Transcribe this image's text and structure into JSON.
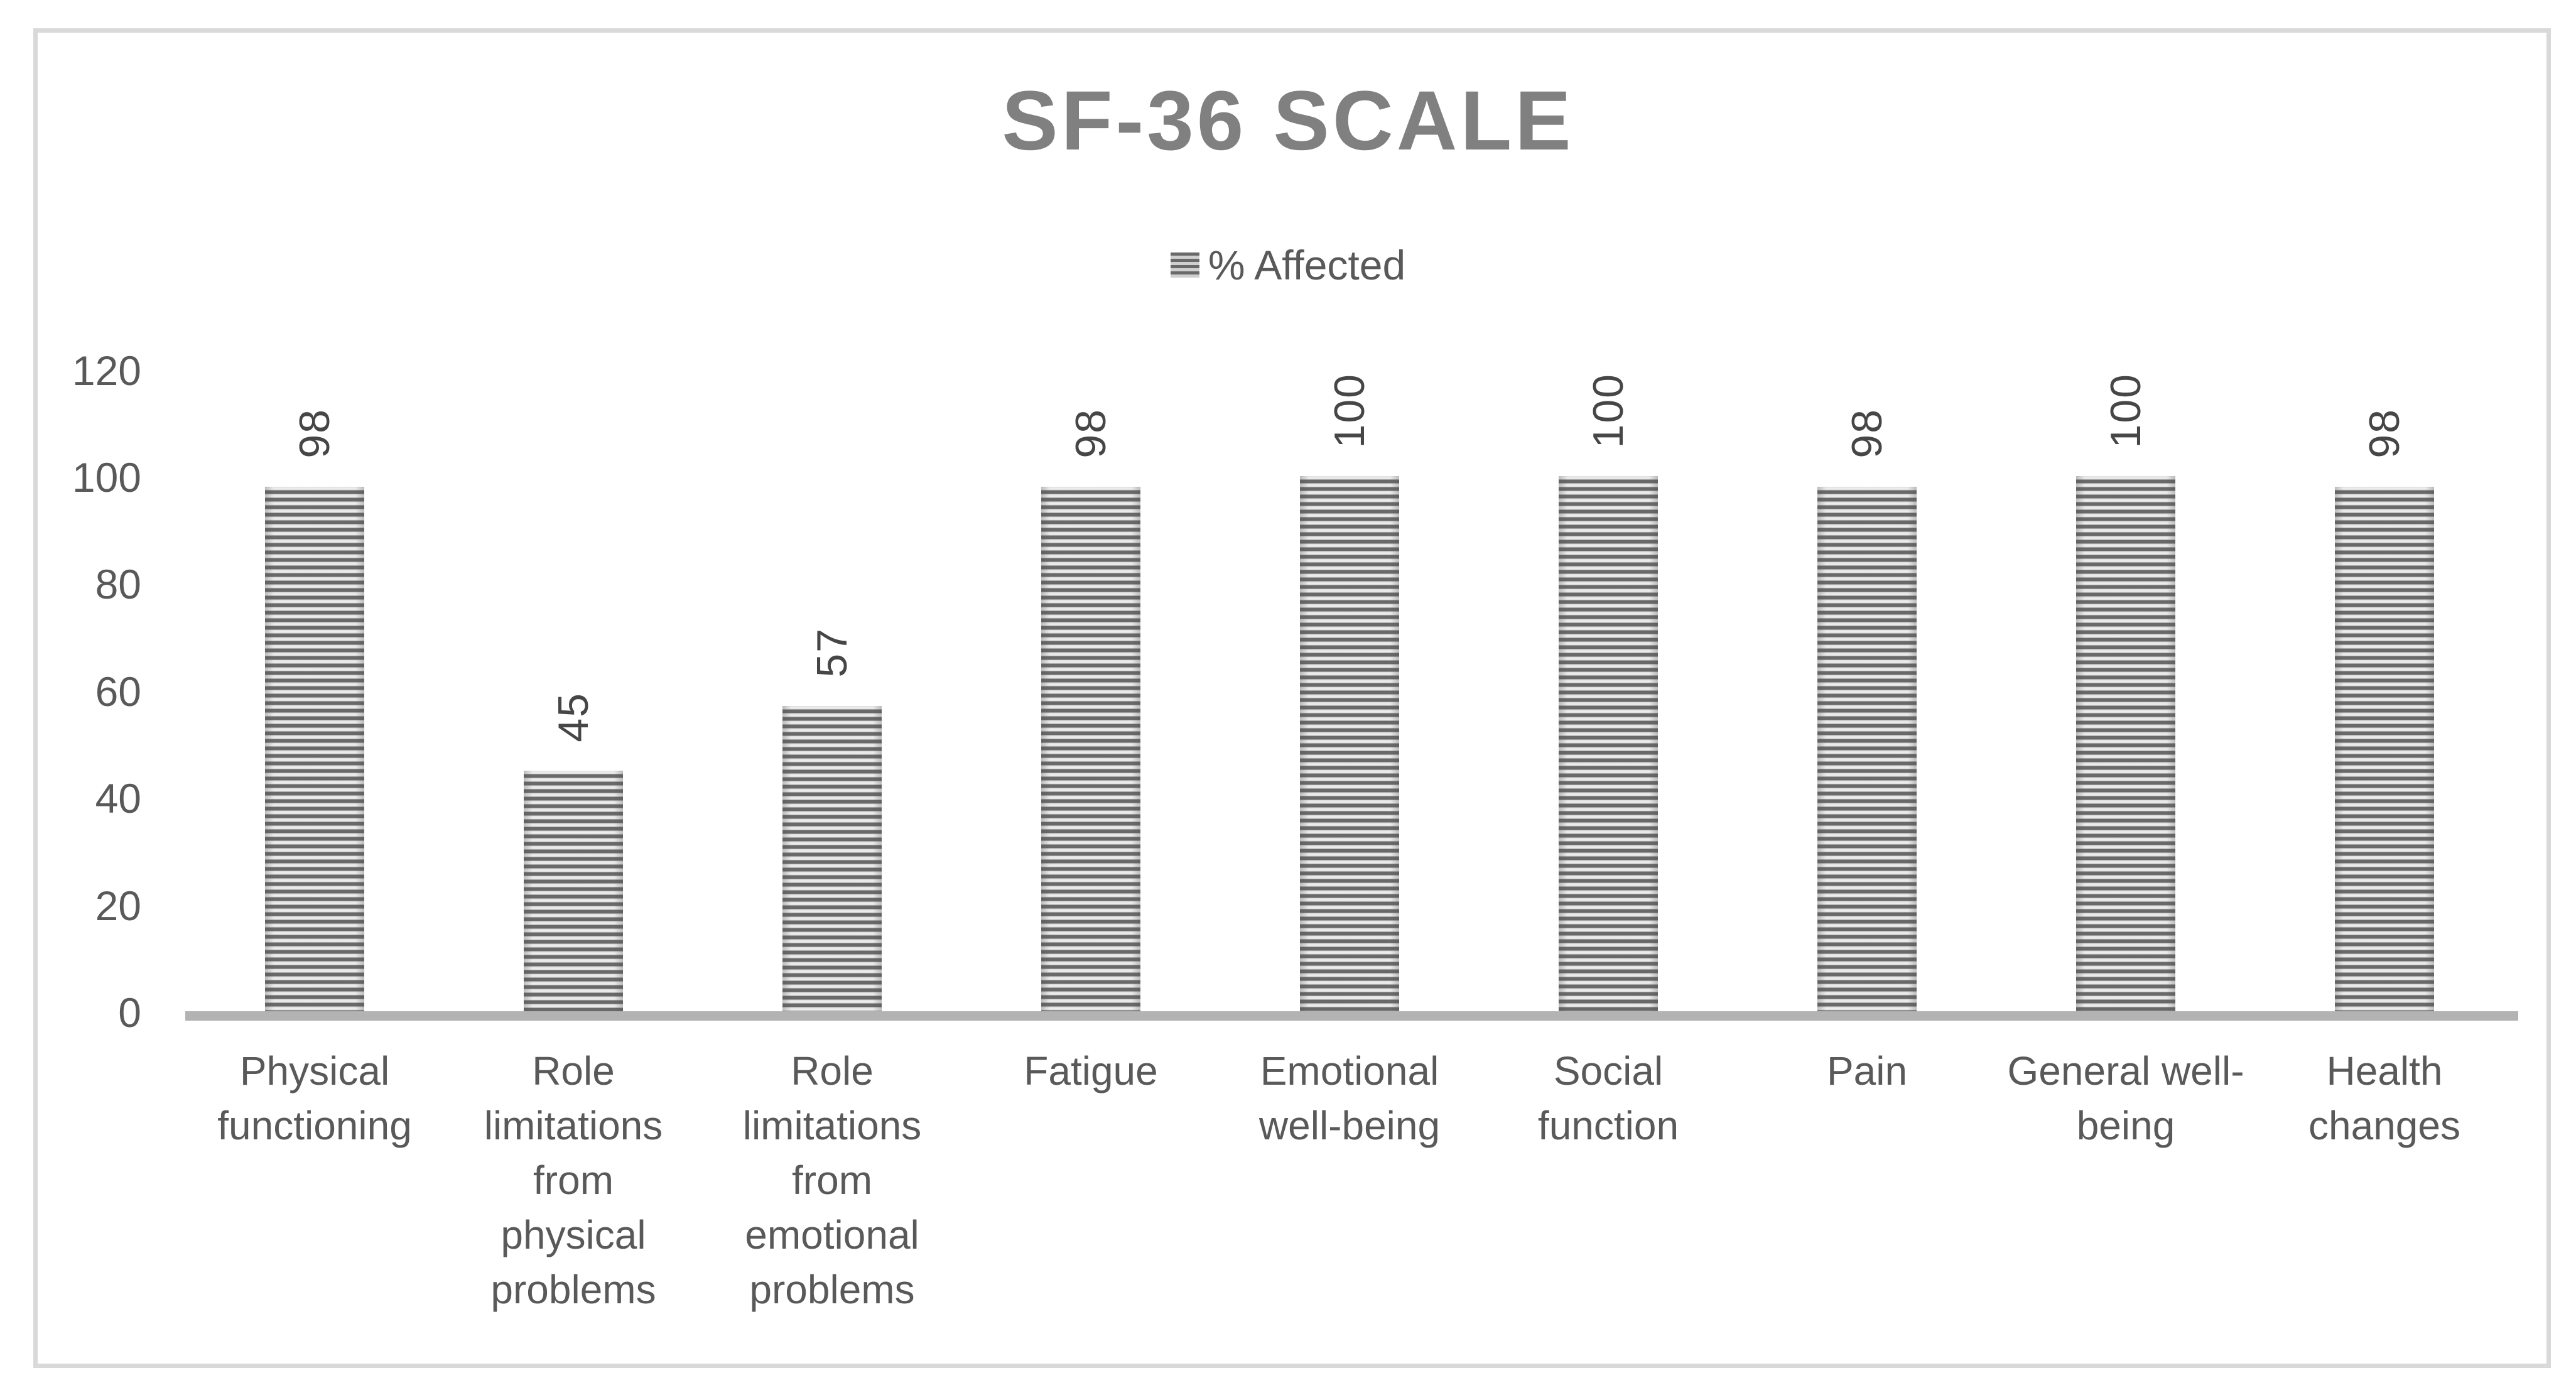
{
  "title": {
    "text": "SF-36 SCALE"
  },
  "legend": {
    "label": "% Affected"
  },
  "y_axis": {
    "tick_labels": [
      "0",
      "20",
      "40",
      "60",
      "80",
      "100",
      "120"
    ]
  },
  "categories": [
    "Physical functioning",
    "Role limitations from physical problems",
    "Role limitations from emotional problems",
    "Fatigue",
    "Emotional well-being",
    "Social function",
    "Pain",
    "General well-being",
    "Health changes"
  ],
  "categories_wrapped": [
    "Physical\nfunctioning",
    "Role\nlimitations\nfrom\nphysical\nproblems",
    "Role\nlimitations\nfrom\nemotional\nproblems",
    "Fatigue",
    "Emotional\nwell-being",
    "Social\nfunction",
    "Pain",
    "General well-\nbeing",
    "Health\nchanges"
  ],
  "data_labels": [
    "98",
    "45",
    "57",
    "98",
    "100",
    "100",
    "98",
    "100",
    "98"
  ],
  "chart_data": {
    "type": "bar",
    "title": "SF-36 SCALE",
    "categories": [
      "Physical functioning",
      "Role limitations from physical problems",
      "Role limitations from emotional problems",
      "Fatigue",
      "Emotional well-being",
      "Social function",
      "Pain",
      "General well-being",
      "Health changes"
    ],
    "series": [
      {
        "name": "% Affected",
        "values": [
          98,
          45,
          57,
          98,
          100,
          100,
          98,
          100,
          98
        ]
      }
    ],
    "xlabel": "",
    "ylabel": "",
    "ylim": [
      0,
      120
    ],
    "yticks": [
      0,
      20,
      40,
      60,
      80,
      100,
      120
    ],
    "grid": false,
    "legend_position": "top-center",
    "bar_fill": "horizontal-stripe-pattern",
    "data_label_style": "rotated-vertical-above-bar",
    "colors": {
      "title": "#808080",
      "axis_text": "#595959",
      "data_label_text": "#464646",
      "bar_stripe_dark": "#696969",
      "bar_stripe_light": "#dedede",
      "axis_line": "#b3b3b3",
      "chart_border": "#d9d9d9",
      "background": "#ffffff"
    }
  }
}
